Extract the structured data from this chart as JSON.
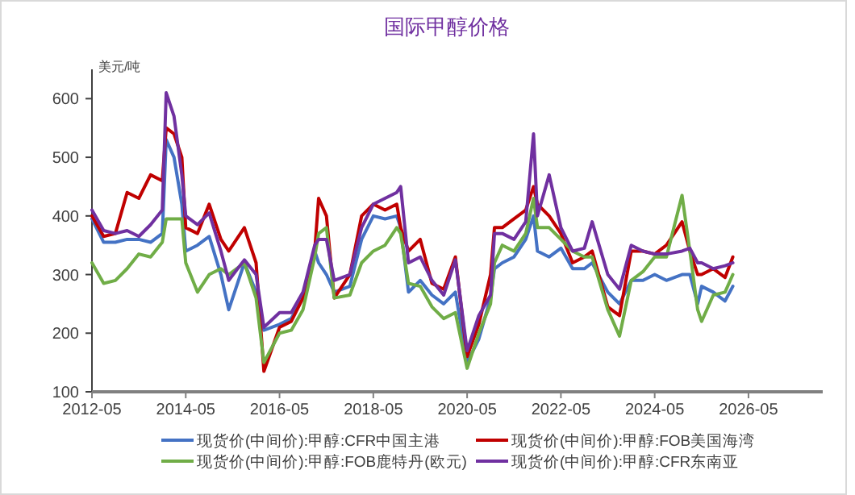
{
  "chart_data": {
    "type": "line",
    "title": "国际甲醇价格",
    "ylabel": "美元/吨",
    "legend": "bottom",
    "x": [
      "2012-05",
      "2012-08",
      "2012-11",
      "2013-02",
      "2013-05",
      "2013-08",
      "2013-11",
      "2013-12",
      "2014-02",
      "2014-04",
      "2014-05",
      "2014-08",
      "2014-11",
      "2015-02",
      "2015-04",
      "2015-08",
      "2015-11",
      "2016-01",
      "2016-05",
      "2016-08",
      "2016-11",
      "2017-02",
      "2017-03",
      "2017-05",
      "2017-07",
      "2017-11",
      "2018-02",
      "2018-05",
      "2018-08",
      "2018-11",
      "2018-12",
      "2019-02",
      "2019-05",
      "2019-08",
      "2019-11",
      "2020-02",
      "2020-05",
      "2020-08",
      "2020-11",
      "2020-12",
      "2021-02",
      "2021-05",
      "2021-08",
      "2021-10",
      "2021-11",
      "2022-02",
      "2022-05",
      "2022-08",
      "2022-11",
      "2023-01",
      "2023-05",
      "2023-08",
      "2023-11",
      "2024-02",
      "2024-05",
      "2024-08",
      "2024-12",
      "2025-02",
      "2025-04",
      "2025-05",
      "2025-08",
      "2025-11",
      "2026-01"
    ],
    "xlim": [
      "2012-05",
      "2027-12"
    ],
    "xticks": [
      "2012-05",
      "2014-05",
      "2016-05",
      "2018-05",
      "2020-05",
      "2022-05",
      "2024-05",
      "2026-05"
    ],
    "ylim": [
      100,
      650
    ],
    "yticks": [
      100,
      200,
      300,
      400,
      500,
      600
    ],
    "series": [
      {
        "name": "现货价(中间价):甲醇:CFR中国主港",
        "color": "#4472c4",
        "values": [
          395,
          355,
          355,
          360,
          360,
          355,
          370,
          530,
          500,
          420,
          340,
          350,
          365,
          300,
          240,
          320,
          270,
          205,
          215,
          225,
          260,
          340,
          320,
          300,
          270,
          280,
          360,
          400,
          395,
          400,
          380,
          270,
          290,
          265,
          250,
          270,
          150,
          190,
          260,
          310,
          320,
          330,
          360,
          400,
          340,
          330,
          345,
          310,
          310,
          320,
          270,
          250,
          290,
          290,
          300,
          290,
          300,
          300,
          250,
          280,
          270,
          255,
          280
        ]
      },
      {
        "name": "现货价(中间价):甲醇:FOB美国海湾",
        "color": "#c00000",
        "values": [
          400,
          365,
          370,
          440,
          430,
          470,
          460,
          550,
          540,
          500,
          380,
          370,
          420,
          360,
          340,
          380,
          320,
          135,
          210,
          220,
          260,
          340,
          430,
          400,
          260,
          300,
          400,
          420,
          410,
          420,
          380,
          340,
          360,
          285,
          275,
          330,
          160,
          215,
          300,
          380,
          380,
          395,
          410,
          450,
          420,
          400,
          370,
          320,
          330,
          340,
          245,
          230,
          340,
          340,
          335,
          350,
          390,
          340,
          300,
          300,
          310,
          295,
          330
        ]
      },
      {
        "name": "现货价(中间价):甲醇:FOB鹿特丹(欧元)",
        "color": "#70ad47",
        "values": [
          320,
          285,
          290,
          310,
          335,
          330,
          355,
          395,
          395,
          395,
          320,
          270,
          300,
          310,
          300,
          320,
          260,
          150,
          200,
          205,
          240,
          330,
          370,
          380,
          260,
          265,
          320,
          340,
          350,
          380,
          370,
          285,
          280,
          245,
          225,
          235,
          140,
          200,
          250,
          320,
          350,
          340,
          370,
          430,
          380,
          380,
          360,
          340,
          330,
          330,
          240,
          195,
          290,
          305,
          330,
          330,
          435,
          340,
          240,
          220,
          265,
          270,
          300
        ]
      },
      {
        "name": "现货价(中间价):甲醇:CFR东南亚",
        "color": "#7030a0",
        "values": [
          410,
          375,
          370,
          375,
          365,
          385,
          410,
          610,
          570,
          470,
          400,
          385,
          405,
          340,
          290,
          325,
          300,
          210,
          235,
          235,
          270,
          350,
          360,
          360,
          290,
          300,
          380,
          420,
          430,
          440,
          450,
          320,
          330,
          290,
          265,
          325,
          170,
          230,
          265,
          370,
          370,
          360,
          390,
          540,
          400,
          470,
          380,
          340,
          345,
          390,
          300,
          275,
          350,
          340,
          335,
          335,
          340,
          345,
          320,
          320,
          310,
          315,
          320
        ]
      }
    ]
  }
}
